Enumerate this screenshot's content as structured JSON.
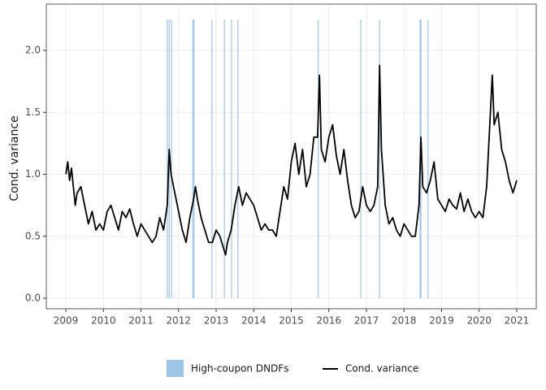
{
  "chart_data": {
    "type": "line",
    "ylabel": "Cond. variance",
    "xlim": [
      2008.48,
      2021.52
    ],
    "ylim": [
      -0.085,
      2.374
    ],
    "xticks": [
      2009,
      2010,
      2011,
      2012,
      2013,
      2014,
      2015,
      2016,
      2017,
      2018,
      2019,
      2020,
      2021
    ],
    "yticks": [
      {
        "value": 0,
        "label": "0.0"
      },
      {
        "value": 0.5,
        "label": "0.5"
      },
      {
        "value": 1,
        "label": "1.0"
      },
      {
        "value": 1.5,
        "label": "1.5"
      },
      {
        "value": 2,
        "label": "2.0"
      }
    ],
    "grid": true,
    "legend": "bottom",
    "events": {
      "name": "High-coupon DNDFs",
      "color": "#9dc3e6",
      "x": [
        2011.7,
        2011.75,
        2011.81,
        2012.38,
        2012.41,
        2012.89,
        2013.22,
        2013.41,
        2013.58,
        2015.72,
        2016.85,
        2017.35,
        2018.43,
        2018.45,
        2018.64
      ]
    },
    "x": [
      2009.0,
      2009.05,
      2009.1,
      2009.15,
      2009.2,
      2009.25,
      2009.3,
      2009.4,
      2009.5,
      2009.6,
      2009.7,
      2009.8,
      2009.9,
      2010.0,
      2010.1,
      2010.2,
      2010.3,
      2010.4,
      2010.5,
      2010.6,
      2010.7,
      2010.8,
      2010.9,
      2011.0,
      2011.1,
      2011.2,
      2011.3,
      2011.4,
      2011.5,
      2011.6,
      2011.7,
      2011.75,
      2011.8,
      2011.9,
      2012.0,
      2012.1,
      2012.2,
      2012.3,
      2012.4,
      2012.45,
      2012.5,
      2012.6,
      2012.7,
      2012.8,
      2012.9,
      2013.0,
      2013.1,
      2013.2,
      2013.25,
      2013.3,
      2013.4,
      2013.5,
      2013.6,
      2013.7,
      2013.8,
      2013.9,
      2014.0,
      2014.1,
      2014.2,
      2014.3,
      2014.4,
      2014.5,
      2014.6,
      2014.7,
      2014.8,
      2014.9,
      2015.0,
      2015.1,
      2015.2,
      2015.3,
      2015.4,
      2015.5,
      2015.6,
      2015.7,
      2015.75,
      2015.8,
      2015.9,
      2016.0,
      2016.1,
      2016.2,
      2016.3,
      2016.4,
      2016.5,
      2016.6,
      2016.7,
      2016.8,
      2016.9,
      2017.0,
      2017.1,
      2017.2,
      2017.3,
      2017.35,
      2017.4,
      2017.5,
      2017.6,
      2017.7,
      2017.8,
      2017.9,
      2018.0,
      2018.1,
      2018.2,
      2018.3,
      2018.4,
      2018.45,
      2018.5,
      2018.6,
      2018.7,
      2018.8,
      2018.9,
      2019.0,
      2019.1,
      2019.2,
      2019.3,
      2019.4,
      2019.5,
      2019.6,
      2019.7,
      2019.8,
      2019.9,
      2020.0,
      2020.1,
      2020.2,
      2020.3,
      2020.35,
      2020.4,
      2020.5,
      2020.6,
      2020.7,
      2020.8,
      2020.9,
      2021.0
    ],
    "series": [
      {
        "name": "Cond. variance",
        "color": "#000000",
        "values": [
          1.0,
          1.1,
          0.95,
          1.05,
          0.9,
          0.75,
          0.85,
          0.9,
          0.75,
          0.6,
          0.7,
          0.55,
          0.6,
          0.55,
          0.7,
          0.75,
          0.65,
          0.55,
          0.7,
          0.65,
          0.72,
          0.6,
          0.5,
          0.6,
          0.55,
          0.5,
          0.45,
          0.5,
          0.65,
          0.55,
          0.75,
          1.2,
          1.0,
          0.85,
          0.7,
          0.55,
          0.45,
          0.65,
          0.8,
          0.9,
          0.8,
          0.65,
          0.55,
          0.45,
          0.45,
          0.55,
          0.5,
          0.4,
          0.35,
          0.45,
          0.55,
          0.75,
          0.9,
          0.75,
          0.85,
          0.8,
          0.75,
          0.65,
          0.55,
          0.6,
          0.55,
          0.55,
          0.5,
          0.7,
          0.9,
          0.8,
          1.1,
          1.25,
          1.0,
          1.2,
          0.9,
          1.0,
          1.3,
          1.3,
          1.8,
          1.2,
          1.1,
          1.3,
          1.4,
          1.15,
          1.0,
          1.2,
          0.95,
          0.75,
          0.65,
          0.7,
          0.9,
          0.75,
          0.7,
          0.75,
          0.9,
          1.88,
          1.2,
          0.75,
          0.6,
          0.65,
          0.55,
          0.5,
          0.6,
          0.55,
          0.5,
          0.5,
          0.75,
          1.3,
          0.9,
          0.85,
          0.95,
          1.1,
          0.8,
          0.75,
          0.7,
          0.8,
          0.75,
          0.72,
          0.85,
          0.7,
          0.8,
          0.7,
          0.65,
          0.7,
          0.65,
          0.9,
          1.5,
          1.8,
          1.4,
          1.5,
          1.2,
          1.1,
          0.95,
          0.85,
          0.95
        ]
      }
    ]
  }
}
